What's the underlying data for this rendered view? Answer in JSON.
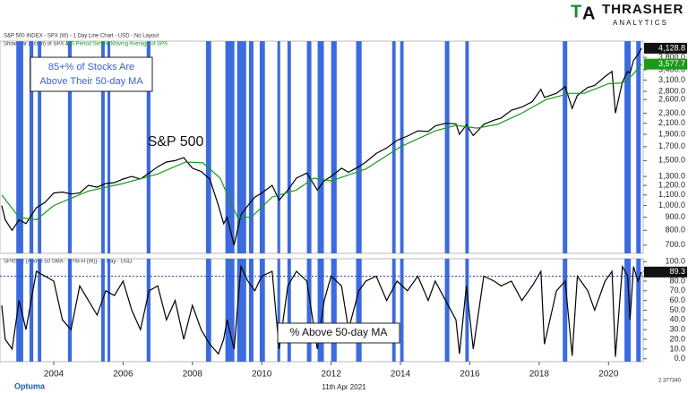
{
  "header": {
    "logo_title": "THRASHER",
    "logo_subtitle": "ANALYTICS",
    "date": "11th Apr 2021",
    "brand": "Optuma",
    "version": "2.377340"
  },
  "chart_data": [
    {
      "type": "line",
      "title": "S&P 500 INDEX - SPX (W) - 1 Day Line Chart - USD - No Layout",
      "subtitle": "Show Bar (Script) of SPX &",
      "annotation": [
        "85+% of Stocks Are",
        "Above Their 50-day MA"
      ],
      "log_scale": true,
      "xlim": [
        2002.45,
        2021.0
      ],
      "ylim": [
        650,
        4400
      ],
      "yticks": [
        {
          "value": 700,
          "label": "700.0"
        },
        {
          "value": 800,
          "label": "800.0"
        },
        {
          "value": 900,
          "label": "900.0"
        },
        {
          "value": 1000,
          "label": "1,000.0"
        },
        {
          "value": 1100,
          "label": "1,100.0"
        },
        {
          "value": 1200,
          "label": "1,200.0"
        },
        {
          "value": 1300,
          "label": "1,300.0"
        },
        {
          "value": 1500,
          "label": "1,500.0"
        },
        {
          "value": 1700,
          "label": "1,700.0"
        },
        {
          "value": 1900,
          "label": "1,900.0"
        },
        {
          "value": 2100,
          "label": "2,100.0"
        },
        {
          "value": 2300,
          "label": "2,300.0"
        },
        {
          "value": 2600,
          "label": "2,600.0"
        },
        {
          "value": 2800,
          "label": "2,800.0"
        },
        {
          "value": 3100,
          "label": "3,100.0"
        },
        {
          "value": 3400,
          "label": "3,400.0"
        },
        {
          "value": 3800,
          "label": "3,800.0"
        }
      ],
      "band_color": "#3c6be0",
      "bands": [
        [
          2002.92,
          2003.12
        ],
        [
          2003.3,
          2003.41
        ],
        [
          2003.54,
          2003.64
        ],
        [
          2004.41,
          2004.52
        ],
        [
          2005.37,
          2005.47
        ],
        [
          2005.55,
          2005.63
        ],
        [
          2006.68,
          2006.79
        ],
        [
          2008.39,
          2008.54
        ],
        [
          2008.95,
          2009.21
        ],
        [
          2009.29,
          2009.55
        ],
        [
          2009.63,
          2009.76
        ],
        [
          2009.94,
          2010.09
        ],
        [
          2010.45,
          2010.53
        ],
        [
          2010.74,
          2010.84
        ],
        [
          2011.3,
          2011.43
        ],
        [
          2011.61,
          2011.79
        ],
        [
          2012.0,
          2012.16
        ],
        [
          2012.72,
          2012.88
        ],
        [
          2013.76,
          2013.86
        ],
        [
          2013.99,
          2014.09
        ],
        [
          2015.28,
          2015.41
        ],
        [
          2015.87,
          2015.97
        ],
        [
          2018.68,
          2018.81
        ],
        [
          2020.46,
          2020.64
        ],
        [
          2020.8,
          2020.93
        ]
      ],
      "series": [
        {
          "name": "S&P 500",
          "color": "#000000",
          "last_label": "4,128.8",
          "x": [
            2002.5,
            2002.6,
            2002.8,
            2003.0,
            2003.2,
            2003.5,
            2003.75,
            2004.0,
            2004.25,
            2004.5,
            2004.75,
            2005.0,
            2005.25,
            2005.5,
            2005.75,
            2006.0,
            2006.25,
            2006.5,
            2006.75,
            2007.0,
            2007.25,
            2007.5,
            2007.75,
            2008.0,
            2008.25,
            2008.5,
            2008.75,
            2008.9,
            2009.0,
            2009.2,
            2009.4,
            2009.6,
            2009.8,
            2010.0,
            2010.3,
            2010.5,
            2010.75,
            2011.0,
            2011.3,
            2011.6,
            2011.8,
            2012.0,
            2012.3,
            2012.5,
            2012.8,
            2013.0,
            2013.3,
            2013.6,
            2013.9,
            2014.2,
            2014.5,
            2014.8,
            2015.0,
            2015.3,
            2015.6,
            2015.7,
            2015.9,
            2016.1,
            2016.4,
            2016.7,
            2016.9,
            2017.2,
            2017.5,
            2017.8,
            2018.05,
            2018.15,
            2018.5,
            2018.75,
            2018.95,
            2019.1,
            2019.4,
            2019.6,
            2019.9,
            2020.1,
            2020.2,
            2020.4,
            2020.55,
            2020.62,
            2020.72,
            2020.85,
            2020.95
          ],
          "values": [
            1000,
            880,
            800,
            880,
            850,
            980,
            1030,
            1120,
            1130,
            1110,
            1120,
            1200,
            1180,
            1220,
            1230,
            1270,
            1300,
            1270,
            1340,
            1420,
            1480,
            1500,
            1540,
            1400,
            1360,
            1270,
            1000,
            850,
            900,
            700,
            920,
            1000,
            1080,
            1120,
            1200,
            1050,
            1150,
            1280,
            1340,
            1150,
            1250,
            1300,
            1400,
            1350,
            1420,
            1480,
            1600,
            1680,
            1800,
            1870,
            1960,
            1950,
            2050,
            2100,
            2090,
            1900,
            2070,
            1880,
            2080,
            2160,
            2200,
            2360,
            2430,
            2550,
            2850,
            2650,
            2750,
            2920,
            2400,
            2700,
            2900,
            2950,
            3200,
            3350,
            2300,
            3050,
            3350,
            3300,
            3700,
            3900,
            4128.8
          ]
        },
        {
          "name": "200 Period Simple Moving Average of SPX",
          "color": "#1a9a1a",
          "last_label": "3,577.7",
          "x": [
            2002.5,
            2003.0,
            2003.5,
            2004.0,
            2005.0,
            2006.0,
            2007.0,
            2007.8,
            2008.3,
            2008.8,
            2009.3,
            2009.7,
            2010.3,
            2011.0,
            2011.5,
            2012.0,
            2013.0,
            2014.0,
            2015.0,
            2015.6,
            2016.2,
            2016.8,
            2017.5,
            2018.2,
            2018.9,
            2019.3,
            2020.0,
            2020.4,
            2020.7,
            2020.95
          ],
          "values": [
            1100,
            900,
            880,
            1000,
            1140,
            1220,
            1330,
            1480,
            1470,
            1280,
            900,
            900,
            1080,
            1150,
            1280,
            1250,
            1390,
            1700,
            1960,
            2060,
            2010,
            2080,
            2300,
            2600,
            2750,
            2750,
            3000,
            3020,
            3250,
            3577.7
          ]
        }
      ]
    },
    {
      "type": "line",
      "title": "SPX50R (Above 50 SMA - $PXFH (W)) - 1 Day - USD",
      "xlim": [
        2002.45,
        2021.0
      ],
      "xticks": [
        2004,
        2006,
        2008,
        2010,
        2012,
        2014,
        2016,
        2018,
        2020
      ],
      "ylim": [
        -3,
        103
      ],
      "yticks": [
        {
          "value": 0,
          "label": "0.0"
        },
        {
          "value": 10,
          "label": "10.0"
        },
        {
          "value": 20,
          "label": "20.0"
        },
        {
          "value": 30,
          "label": "30.0"
        },
        {
          "value": 40,
          "label": "40.0"
        },
        {
          "value": 50,
          "label": "50.0"
        },
        {
          "value": 60,
          "label": "60.0"
        },
        {
          "value": 70,
          "label": "70.0"
        },
        {
          "value": 80,
          "label": "80.0"
        },
        {
          "value": 90,
          "label": "90.0"
        },
        {
          "value": 100,
          "label": "100.0"
        }
      ],
      "reference_line": 85,
      "series": [
        {
          "name": "% Above 50-day MA",
          "color": "#000000",
          "x": [
            2002.5,
            2002.6,
            2002.8,
            2003.0,
            2003.2,
            2003.5,
            2003.75,
            2004.0,
            2004.25,
            2004.5,
            2004.75,
            2005.0,
            2005.25,
            2005.5,
            2005.75,
            2006.0,
            2006.25,
            2006.5,
            2006.75,
            2007.0,
            2007.25,
            2007.5,
            2007.75,
            2008.0,
            2008.25,
            2008.5,
            2008.75,
            2008.9,
            2009.0,
            2009.2,
            2009.4,
            2009.6,
            2009.8,
            2010.0,
            2010.3,
            2010.5,
            2010.75,
            2011.0,
            2011.3,
            2011.6,
            2011.8,
            2012.0,
            2012.3,
            2012.5,
            2012.8,
            2013.0,
            2013.3,
            2013.6,
            2013.9,
            2014.2,
            2014.5,
            2014.8,
            2015.0,
            2015.3,
            2015.6,
            2015.7,
            2015.9,
            2016.1,
            2016.4,
            2016.7,
            2016.9,
            2017.2,
            2017.5,
            2017.8,
            2018.05,
            2018.15,
            2018.5,
            2018.75,
            2018.95,
            2019.1,
            2019.4,
            2019.6,
            2019.9,
            2020.1,
            2020.2,
            2020.4,
            2020.55,
            2020.62,
            2020.72,
            2020.85,
            2020.95
          ],
          "values": [
            55,
            20,
            10,
            60,
            30,
            90,
            85,
            80,
            40,
            30,
            75,
            60,
            45,
            70,
            65,
            80,
            50,
            30,
            70,
            75,
            40,
            60,
            20,
            55,
            30,
            15,
            5,
            20,
            40,
            10,
            95,
            80,
            70,
            85,
            90,
            10,
            75,
            90,
            80,
            10,
            60,
            85,
            75,
            30,
            70,
            80,
            85,
            60,
            80,
            70,
            85,
            60,
            80,
            60,
            40,
            5,
            75,
            10,
            85,
            80,
            75,
            80,
            60,
            75,
            90,
            15,
            70,
            80,
            3,
            85,
            70,
            50,
            80,
            90,
            2,
            95,
            85,
            40,
            95,
            80,
            89.3
          ]
        }
      ]
    }
  ]
}
